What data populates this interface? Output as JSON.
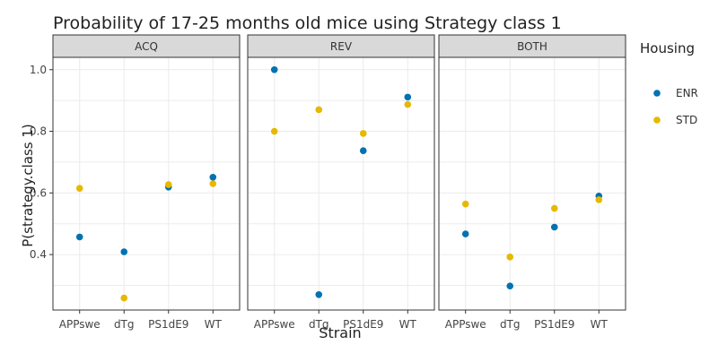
{
  "chart_data": {
    "type": "scatter",
    "title": "Probability of 17-25 months old mice using Strategy class 1",
    "xlabel": "Strain",
    "ylabel": "P(strategy.class 1)",
    "categories": [
      "APPswe",
      "dTg",
      "PS1dE9",
      "WT"
    ],
    "ylim": [
      0.22,
      1.04
    ],
    "yticks": [
      0.4,
      0.6,
      0.8,
      1.0
    ],
    "ytick_labels": [
      "0.4",
      "0.6",
      "0.8",
      "1.0"
    ],
    "grid": true,
    "legend": {
      "title": "Housing",
      "placement": "right",
      "entries": [
        {
          "name": "ENR",
          "color": "#0072B2"
        },
        {
          "name": "STD",
          "color": "#E6B800"
        }
      ]
    },
    "facets": [
      {
        "label": "ACQ",
        "series": [
          {
            "name": "ENR",
            "values": [
              0.457,
              0.409,
              0.619,
              0.651
            ]
          },
          {
            "name": "STD",
            "values": [
              0.615,
              0.259,
              0.627,
              0.63
            ]
          }
        ]
      },
      {
        "label": "REV",
        "series": [
          {
            "name": "ENR",
            "values": [
              1.0,
              0.27,
              0.737,
              0.911
            ]
          },
          {
            "name": "STD",
            "values": [
              0.8,
              0.87,
              0.793,
              0.887
            ]
          }
        ]
      },
      {
        "label": "BOTH",
        "series": [
          {
            "name": "ENR",
            "values": [
              0.467,
              0.298,
              0.489,
              0.59
            ]
          },
          {
            "name": "STD",
            "values": [
              0.564,
              0.392,
              0.55,
              0.578
            ]
          }
        ]
      }
    ]
  }
}
